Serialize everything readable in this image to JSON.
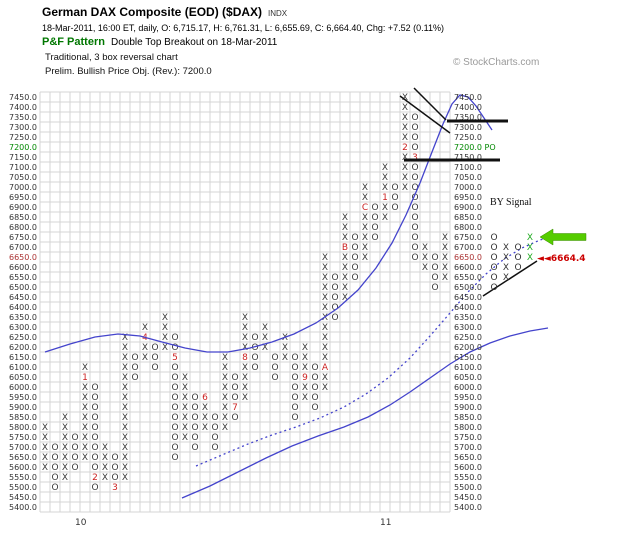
{
  "header": {
    "title": "German DAX Composite (EOD) ($DAX)",
    "title_suffix": "INDX",
    "quote_line": "18-Mar-2011, 16:00 ET, daily, O: 6,715.17, H: 6,761.31, L: 6,655.69, C: 6,664.40, Chg: +7.52 (0.11%)",
    "pattern_label": "P&F Pattern",
    "pattern_value": "Double Top Breakout on 18-Mar-2011",
    "chart_type_line": "Traditional, 3 box reversal chart",
    "price_obj_line": "Prelim. Bullish Price Obj. (Rev.): 7200.0",
    "watermark": "© StockCharts.com"
  },
  "chart_data": {
    "type": "point-and-figure",
    "title": "German DAX Composite (EOD) ($DAX)",
    "box_size": 50,
    "reversal": 3,
    "ylim": [
      5400,
      7450
    ],
    "grid": true,
    "colors": {
      "mark": "#3a3a3a",
      "month_marker": "#cc2222",
      "grid_line": "#d4d4d4",
      "trend_blue": "#4444cc",
      "annotation_black": "#111111",
      "buy_green": "#22aa22",
      "arrow_green": "#55cc00",
      "price_red": "#cc0000",
      "po_green": "#008800",
      "last_price_label": "#aa3333"
    },
    "y_axis": {
      "step": 50,
      "special_labels": {
        "7200": {
          "color": "#008800",
          "right_text": "7200.0 PO"
        },
        "6650": {
          "color": "#aa3333"
        }
      }
    },
    "x_axis_years": [
      {
        "label": "10",
        "col": 3.5
      },
      {
        "label": "11",
        "col": 34
      }
    ],
    "columns": [
      {
        "t": "X",
        "lo": 5600,
        "hi": 5800
      },
      {
        "t": "O",
        "lo": 5500,
        "hi": 5700
      },
      {
        "t": "X",
        "lo": 5550,
        "hi": 5850
      },
      {
        "t": "O",
        "lo": 5600,
        "hi": 5750
      },
      {
        "t": "X",
        "lo": 5650,
        "hi": 6100,
        "m": "1",
        "mp": 6050
      },
      {
        "t": "O",
        "lo": 5500,
        "hi": 6000,
        "m": "2",
        "mp": 5550
      },
      {
        "t": "X",
        "lo": 5550,
        "hi": 5700
      },
      {
        "t": "O",
        "lo": 5500,
        "hi": 5650,
        "m": "3",
        "mp": 5500
      },
      {
        "t": "X",
        "lo": 5550,
        "hi": 6250
      },
      {
        "t": "O",
        "lo": 6050,
        "hi": 6150
      },
      {
        "t": "X",
        "lo": 6150,
        "hi": 6300,
        "m": "4",
        "mp": 6250
      },
      {
        "t": "O",
        "lo": 6100,
        "hi": 6200
      },
      {
        "t": "X",
        "lo": 6200,
        "hi": 6350
      },
      {
        "t": "O",
        "lo": 5650,
        "hi": 6250,
        "m": "5",
        "mp": 6150
      },
      {
        "t": "X",
        "lo": 5750,
        "hi": 6050
      },
      {
        "t": "O",
        "lo": 5700,
        "hi": 5950
      },
      {
        "t": "X",
        "lo": 5800,
        "hi": 5950,
        "m": "6",
        "mp": 5950
      },
      {
        "t": "O",
        "lo": 5700,
        "hi": 5850
      },
      {
        "t": "X",
        "lo": 5800,
        "hi": 6150
      },
      {
        "t": "O",
        "lo": 5850,
        "hi": 6050,
        "m": "7",
        "mp": 5900
      },
      {
        "t": "X",
        "lo": 5950,
        "hi": 6350,
        "m": "8",
        "mp": 6150
      },
      {
        "t": "O",
        "lo": 6100,
        "hi": 6250
      },
      {
        "t": "X",
        "lo": 6200,
        "hi": 6300
      },
      {
        "t": "O",
        "lo": 6050,
        "hi": 6150
      },
      {
        "t": "X",
        "lo": 6150,
        "hi": 6250
      },
      {
        "t": "O",
        "lo": 5850,
        "hi": 6150
      },
      {
        "t": "X",
        "lo": 5950,
        "hi": 6200,
        "m": "9",
        "mp": 6050
      },
      {
        "t": "O",
        "lo": 5900,
        "hi": 6100
      },
      {
        "t": "X",
        "lo": 6000,
        "hi": 6650,
        "m": "A",
        "mp": 6100
      },
      {
        "t": "O",
        "lo": 6350,
        "hi": 6550
      },
      {
        "t": "X",
        "lo": 6450,
        "hi": 6850,
        "m": "B",
        "mp": 6700
      },
      {
        "t": "O",
        "lo": 6550,
        "hi": 6750
      },
      {
        "t": "X",
        "lo": 6650,
        "hi": 7000,
        "m": "C",
        "mp": 6900
      },
      {
        "t": "O",
        "lo": 6750,
        "hi": 6900
      },
      {
        "t": "X",
        "lo": 6850,
        "hi": 7100,
        "m": "1",
        "mp": 6950
      },
      {
        "t": "O",
        "lo": 6900,
        "hi": 7000
      },
      {
        "t": "X",
        "lo": 7000,
        "hi": 7450,
        "m": "2",
        "mp": 7200
      },
      {
        "t": "O",
        "lo": 6650,
        "hi": 7350,
        "m": "3",
        "mp": 7150
      },
      {
        "t": "X",
        "lo": 6600,
        "hi": 6700
      },
      {
        "t": "O",
        "lo": 6500,
        "hi": 6650
      },
      {
        "t": "X",
        "lo": 6550,
        "hi": 6750
      }
    ],
    "trend_lines": {
      "upper_solid": [
        [
          45,
          352
        ],
        [
          70,
          344
        ],
        [
          95,
          337
        ],
        [
          118,
          334
        ],
        [
          140,
          336
        ],
        [
          162,
          342
        ],
        [
          185,
          348
        ],
        [
          207,
          352
        ],
        [
          228,
          352
        ],
        [
          250,
          348
        ],
        [
          272,
          342
        ],
        [
          294,
          334
        ],
        [
          316,
          323
        ],
        [
          338,
          308
        ],
        [
          358,
          290
        ],
        [
          376,
          268
        ],
        [
          392,
          243
        ],
        [
          406,
          215
        ],
        [
          420,
          183
        ],
        [
          432,
          152
        ],
        [
          443,
          124
        ],
        [
          452,
          104
        ],
        [
          460,
          95
        ],
        [
          468,
          97
        ],
        [
          476,
          106
        ],
        [
          484,
          118
        ],
        [
          492,
          130
        ]
      ],
      "lower_solid": [
        [
          182,
          498
        ],
        [
          210,
          486
        ],
        [
          238,
          472
        ],
        [
          266,
          458
        ],
        [
          292,
          446
        ],
        [
          318,
          436
        ],
        [
          344,
          427
        ],
        [
          368,
          417
        ],
        [
          390,
          405
        ],
        [
          410,
          392
        ],
        [
          430,
          378
        ],
        [
          450,
          364
        ],
        [
          470,
          352
        ],
        [
          490,
          343
        ],
        [
          510,
          336
        ],
        [
          530,
          331
        ],
        [
          548,
          328
        ]
      ],
      "dotted": [
        [
          196,
          466
        ],
        [
          222,
          455
        ],
        [
          248,
          444
        ],
        [
          272,
          435
        ],
        [
          296,
          427
        ],
        [
          320,
          418
        ],
        [
          344,
          407
        ],
        [
          366,
          394
        ],
        [
          388,
          378
        ],
        [
          410,
          358
        ],
        [
          430,
          336
        ],
        [
          450,
          313
        ],
        [
          468,
          292
        ],
        [
          486,
          274
        ],
        [
          504,
          259
        ],
        [
          522,
          248
        ],
        [
          540,
          240
        ],
        [
          554,
          236
        ]
      ]
    },
    "annotations": {
      "lines": [
        {
          "x1": 400,
          "y1": 96,
          "x2": 450,
          "y2": 133,
          "w": 1.5
        },
        {
          "x1": 414,
          "y1": 88,
          "x2": 446,
          "y2": 120,
          "w": 1.5
        },
        {
          "x1": 447,
          "y1": 121,
          "x2": 508,
          "y2": 121,
          "w": 3
        },
        {
          "x1": 404,
          "y1": 160,
          "x2": 500,
          "y2": 160,
          "w": 3
        },
        {
          "x1": 483,
          "y1": 296,
          "x2": 537,
          "y2": 261,
          "w": 1.5
        }
      ],
      "projection_columns": [
        {
          "x": 494,
          "t": "O",
          "lo": 6500,
          "hi": 6750,
          "color": "#333333"
        },
        {
          "x": 506,
          "t": "X",
          "lo": 6550,
          "hi": 6700,
          "color": "#333333"
        },
        {
          "x": 518,
          "t": "O",
          "lo": 6600,
          "hi": 6700,
          "color": "#333333"
        },
        {
          "x": 530,
          "t": "X",
          "lo": 6650,
          "hi": 6750,
          "color": "#22aa22"
        }
      ],
      "buy_signal": {
        "text": "BY Signal",
        "x": 490,
        "y": 205
      },
      "green_arrow": {
        "tip_x": 540,
        "tip_y": 237,
        "tail_x": 586,
        "color": "#55cc00"
      },
      "current_price": {
        "text": "◄◄6664.4",
        "x": 537,
        "y": 261,
        "color": "#cc0000"
      }
    }
  }
}
